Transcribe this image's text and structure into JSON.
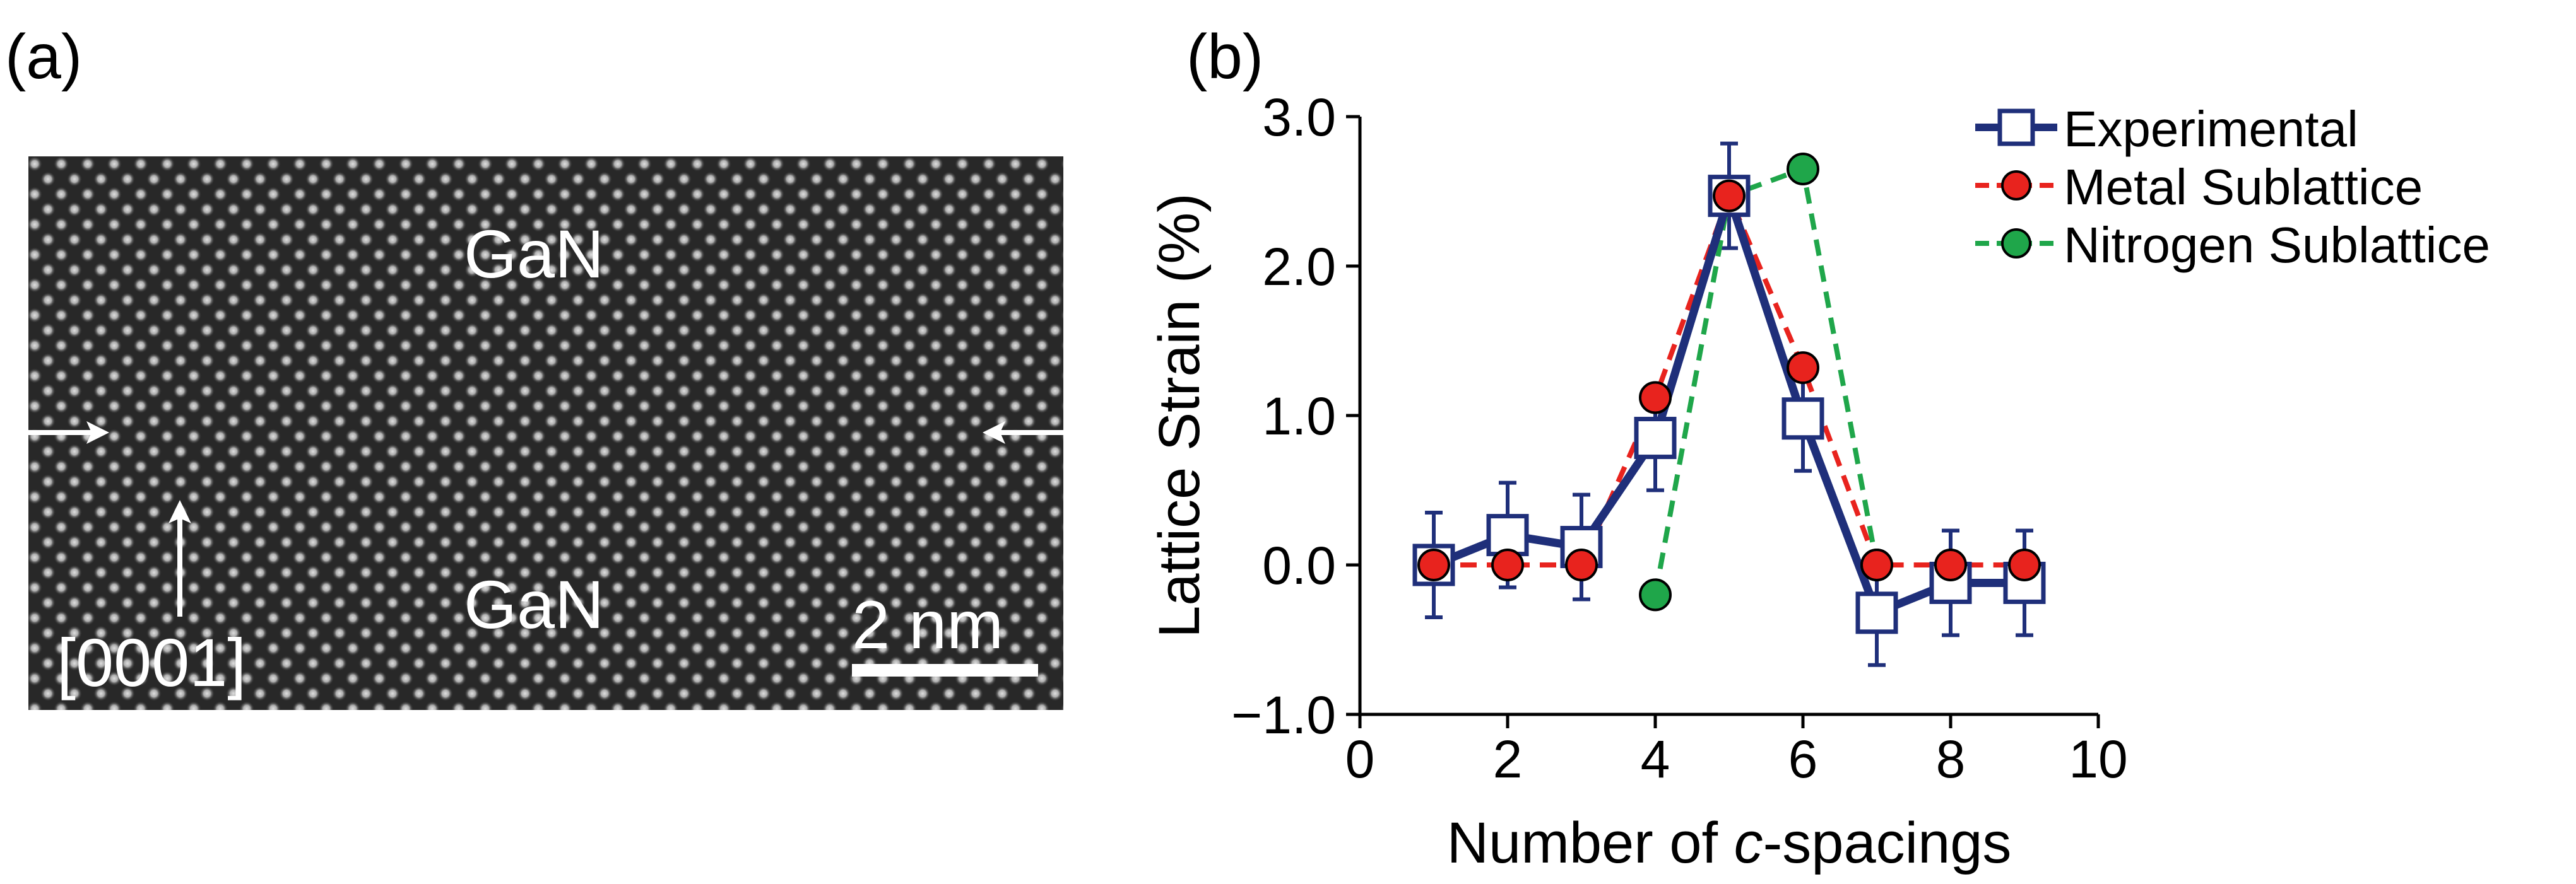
{
  "panel_a": {
    "label": "(a)",
    "top_layer_label": "GaN",
    "bottom_layer_label": "GaN",
    "direction_label": "[0001]",
    "scale_bar_label": "2 nm"
  },
  "panel_b": {
    "label": "(b)"
  },
  "colors": {
    "experimental": "#1f2f7a",
    "metal": "#e8231e",
    "nitrogen": "#1fa64a"
  },
  "chart_data": {
    "type": "line",
    "title": "",
    "xlabel_prefix": "Number of ",
    "xlabel_italic": "c",
    "xlabel_suffix": "-spacings",
    "ylabel": "Lattice Strain (%)",
    "xlim": [
      0,
      10
    ],
    "ylim": [
      -1.0,
      3.0
    ],
    "x_ticks": [
      "0",
      "2",
      "4",
      "6",
      "8",
      "10"
    ],
    "x_tick_values": [
      0,
      2,
      4,
      6,
      8,
      10
    ],
    "y_ticks": [
      "−1.0",
      "0.0",
      "1.0",
      "2.0",
      "3.0"
    ],
    "y_tick_values": [
      -1.0,
      0.0,
      1.0,
      2.0,
      3.0
    ],
    "grid": false,
    "legend_position": "top-right",
    "series": [
      {
        "name": "Experimental",
        "marker": "open-square",
        "line": "solid",
        "x": [
          1,
          2,
          3,
          4,
          5,
          6,
          7,
          8,
          9
        ],
        "y": [
          0.0,
          0.2,
          0.12,
          0.85,
          2.47,
          0.98,
          -0.32,
          -0.12,
          -0.12
        ],
        "error": [
          0.35,
          0.35,
          0.35,
          0.35,
          0.35,
          0.35,
          0.35,
          0.35,
          0.35
        ]
      },
      {
        "name": "Metal Sublattice",
        "marker": "filled-circle",
        "line": "dashed",
        "x": [
          1,
          2,
          3,
          4,
          5,
          6,
          7,
          8,
          9
        ],
        "y": [
          0.0,
          0.0,
          0.0,
          1.12,
          2.47,
          1.32,
          0.0,
          0.0,
          0.0
        ]
      },
      {
        "name": "Nitrogen Sublattice",
        "marker": "filled-circle",
        "line": "dashed",
        "x": [
          4,
          5,
          6,
          7
        ],
        "y": [
          -0.2,
          2.47,
          2.65,
          0.0
        ]
      }
    ]
  }
}
